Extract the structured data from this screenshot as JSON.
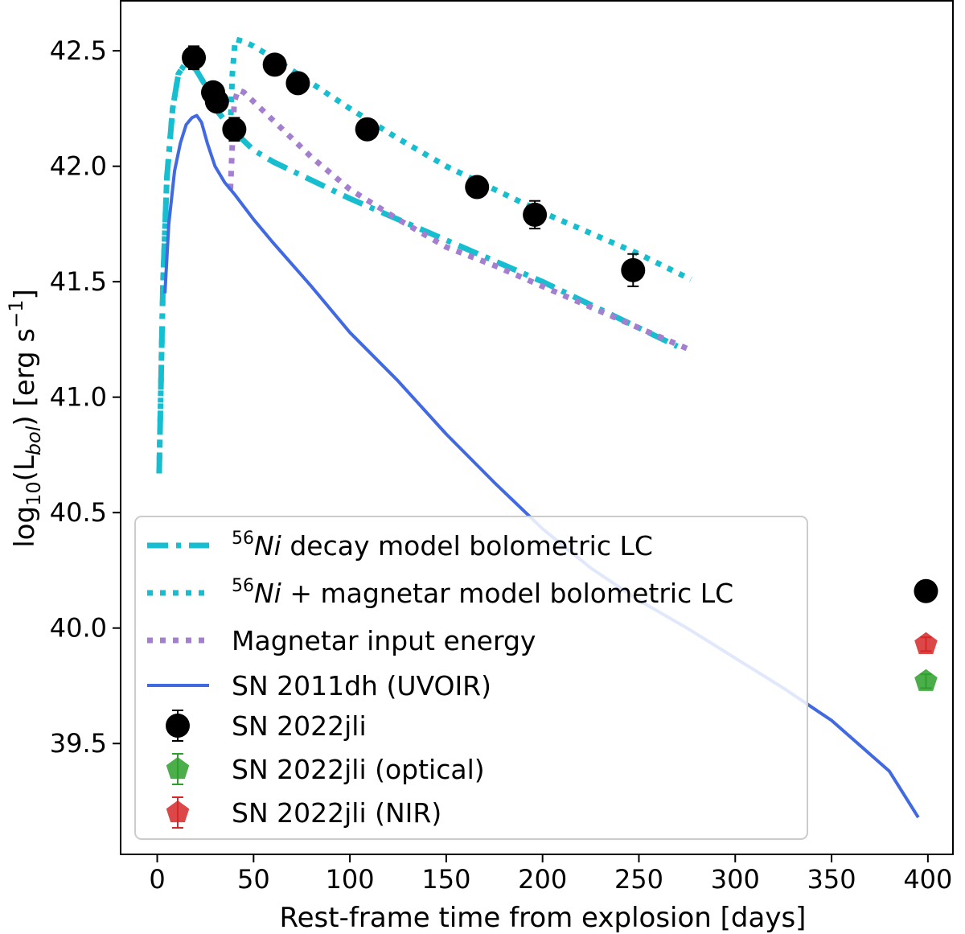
{
  "chart_data": {
    "type": "line",
    "title": "",
    "xlabel": "Rest-frame time from explosion [days]",
    "ylabel_parts": {
      "pre": "log",
      "sub1": "10",
      "mid": "(L",
      "sub2": "bol",
      "post": ") [erg s",
      "sup": "−1",
      "end": "]"
    },
    "xlim": [
      -19,
      413
    ],
    "ylim": [
      39.02,
      42.72
    ],
    "xticks": [
      0,
      50,
      100,
      150,
      200,
      250,
      300,
      350,
      400
    ],
    "yticks": [
      39.5,
      40.0,
      40.5,
      41.0,
      41.5,
      42.0,
      42.5
    ],
    "ytick_labels": [
      "39.5",
      "40.0",
      "40.5",
      "41.0",
      "41.5",
      "42.0",
      "42.5"
    ],
    "grid": false,
    "legend_placement": "lower-left",
    "series": [
      {
        "name": "Ni decay model bolometric LC",
        "name_sup": "56",
        "name_it": "Ni",
        "name_rest": " decay model bolometric LC",
        "style": "dashdot",
        "color": "#17becf",
        "x": [
          1,
          3,
          5,
          8,
          11,
          15,
          20,
          25,
          30,
          35,
          40,
          50,
          60,
          80,
          100,
          125,
          150,
          175,
          200,
          225,
          250,
          270
        ],
        "y": [
          40.67,
          41.5,
          41.95,
          42.25,
          42.4,
          42.45,
          42.42,
          42.35,
          42.25,
          42.2,
          42.15,
          42.07,
          42.02,
          41.94,
          41.86,
          41.77,
          41.68,
          41.59,
          41.5,
          41.4,
          41.3,
          41.22
        ]
      },
      {
        "name": "Ni + magnetar model bolometric LC",
        "name_sup": "56",
        "name_it": "Ni",
        "name_rest": " + magnetar model bolometric LC",
        "style": "dotted",
        "color": "#17becf",
        "x": [
          1,
          3,
          5,
          8,
          11,
          15,
          20,
          25,
          30,
          35,
          38,
          39,
          40.5,
          45,
          50,
          60,
          80,
          100,
          125,
          150,
          175,
          200,
          225,
          250,
          277
        ],
        "y": [
          40.67,
          41.5,
          41.95,
          42.25,
          42.4,
          42.45,
          42.42,
          42.35,
          42.25,
          42.2,
          42.18,
          42.4,
          42.55,
          42.54,
          42.52,
          42.47,
          42.36,
          42.25,
          42.12,
          42.0,
          41.9,
          41.8,
          41.71,
          41.62,
          41.51
        ]
      },
      {
        "name": "Magnetar input energy",
        "style": "dotted",
        "color": "#a47fd0",
        "x": [
          38,
          39,
          40,
          42,
          45,
          50,
          60,
          80,
          100,
          125,
          150,
          175,
          200,
          225,
          250,
          278
        ],
        "y": [
          41.9,
          42.1,
          42.28,
          42.33,
          42.32,
          42.28,
          42.2,
          42.04,
          41.9,
          41.77,
          41.65,
          41.57,
          41.48,
          41.39,
          41.3,
          41.2
        ]
      },
      {
        "name": "SN 2011dh (UVOIR)",
        "style": "solid",
        "color": "#4169e1",
        "x": [
          4,
          6,
          9,
          12,
          15,
          18,
          20.5,
          23,
          26,
          30,
          35,
          40,
          50,
          60,
          80,
          100,
          125,
          150,
          175,
          200,
          225,
          250,
          275,
          300,
          325,
          350,
          380,
          395
        ],
        "y": [
          41.45,
          41.75,
          41.98,
          42.1,
          42.18,
          42.21,
          42.22,
          42.19,
          42.1,
          42.0,
          41.93,
          41.88,
          41.77,
          41.67,
          41.48,
          41.28,
          41.07,
          40.84,
          40.63,
          40.43,
          40.26,
          40.12,
          40.0,
          39.87,
          39.74,
          39.6,
          39.38,
          39.18
        ]
      }
    ],
    "points": [
      {
        "name": "SN 2022jli",
        "marker": "circle",
        "color": "#000000",
        "x": [
          19,
          29,
          31,
          40,
          61,
          73,
          109,
          166,
          196,
          247,
          399
        ],
        "y": [
          42.47,
          42.32,
          42.28,
          42.16,
          42.44,
          42.36,
          42.16,
          41.91,
          41.79,
          41.55,
          40.16
        ],
        "yerr": [
          0.05,
          0.02,
          0.02,
          0.05,
          0.02,
          0.02,
          0.02,
          0.02,
          0.06,
          0.07,
          0.02
        ]
      },
      {
        "name": "SN 2022jli (optical)",
        "marker": "pentagon",
        "color": "#2ca02c",
        "x": [
          399
        ],
        "y": [
          39.77
        ],
        "yerr": [
          0.03
        ]
      },
      {
        "name": "SN 2022jli (NIR)",
        "marker": "pentagon",
        "color": "#d62728",
        "x": [
          399
        ],
        "y": [
          39.93
        ],
        "yerr": [
          0.03
        ]
      }
    ]
  }
}
